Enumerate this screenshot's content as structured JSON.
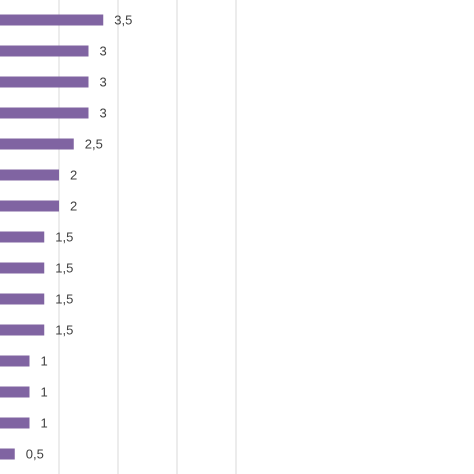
{
  "chart_data": {
    "type": "bar",
    "orientation": "horizontal",
    "values": [
      3.5,
      3,
      3,
      3,
      2.5,
      2,
      2,
      1.5,
      1.5,
      1.5,
      1.5,
      1,
      1,
      1,
      0.5
    ],
    "labels": [
      "3,5",
      "3",
      "3",
      "3",
      "2,5",
      "2",
      "2",
      "1,5",
      "1,5",
      "1,5",
      "1,5",
      "1",
      "1",
      "1",
      "0,5"
    ],
    "xlim": [
      0,
      8
    ],
    "grid": true,
    "bar_color": "#8064a2",
    "grid_color": "#d9d9d9",
    "label_color": "#404040"
  }
}
